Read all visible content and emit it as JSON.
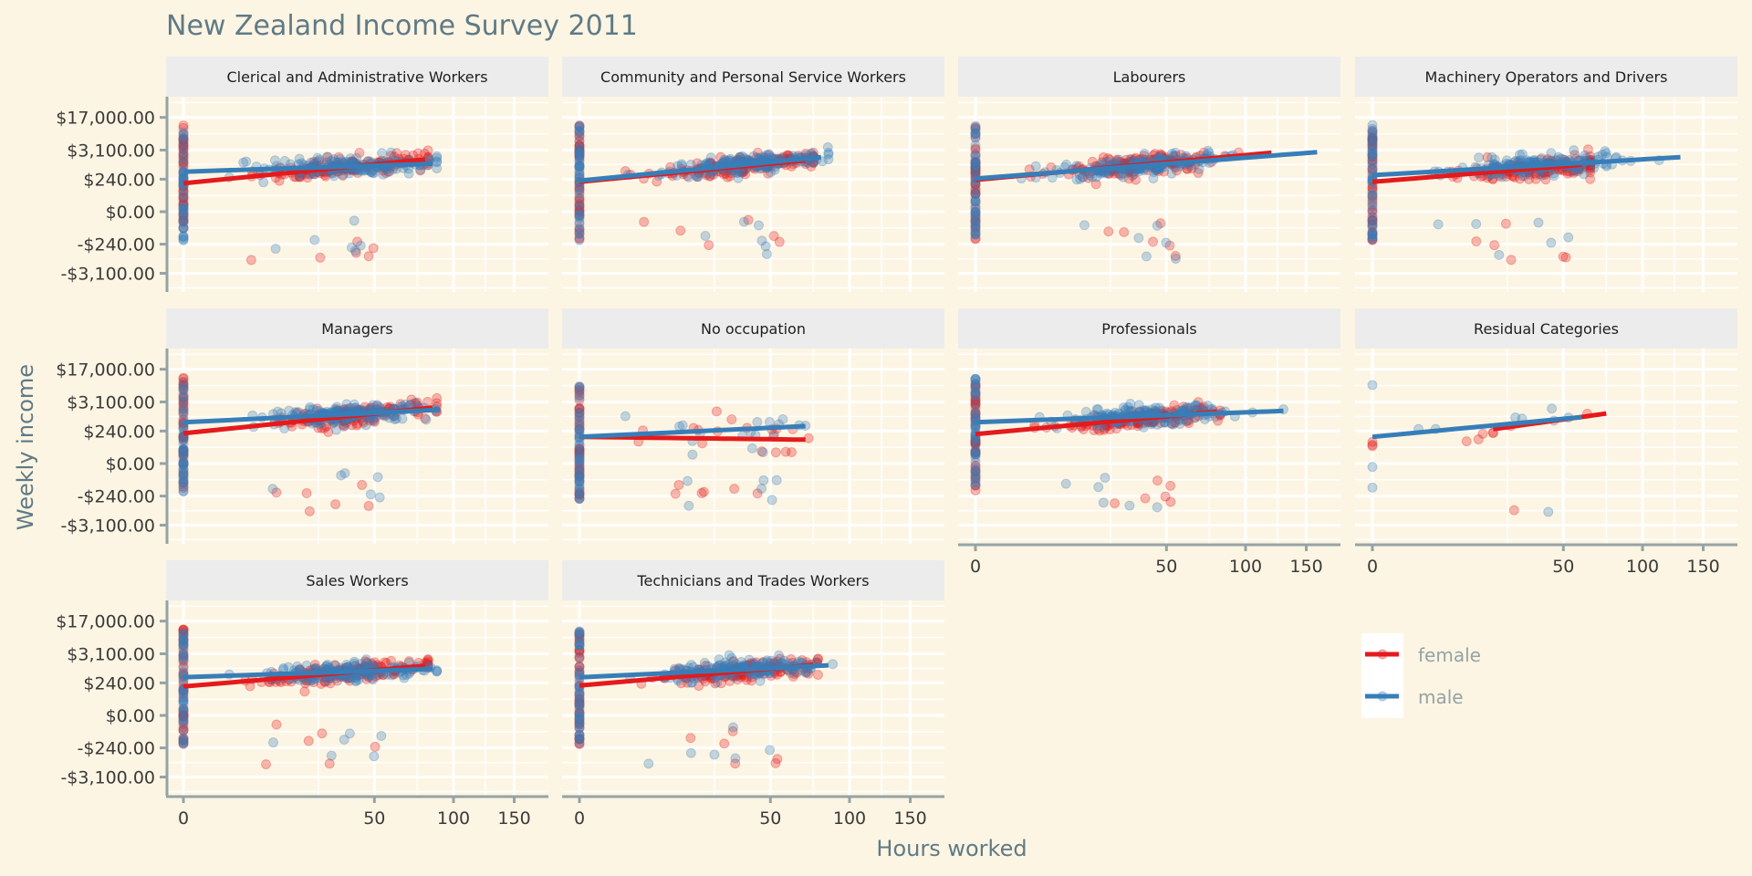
{
  "chart_data": {
    "type": "scatter",
    "title": "New Zealand Income Survey 2011",
    "xlabel": "Hours worked",
    "ylabel": "Weekly income",
    "x_scale": "sqrt",
    "y_scale": "signed fourth-root",
    "x_ticks": [
      0,
      50,
      100,
      150
    ],
    "x_tick_labels": [
      "0",
      "50",
      "100",
      "150"
    ],
    "x_minor_ticks": [
      25,
      75,
      125
    ],
    "y_ticks": [
      -3100,
      -240,
      0,
      240,
      3100,
      17000
    ],
    "y_tick_labels": [
      "-$3,100.00",
      "-$240.00",
      "$0.00",
      "$240.00",
      "$3,100.00",
      "$17,000.00"
    ],
    "xlim": [
      0,
      170
    ],
    "ylim": [
      -9000,
      45000
    ],
    "grid": true,
    "legend": {
      "placement": "bottom-right",
      "entries": [
        {
          "name": "female",
          "color": "#e41a1c"
        },
        {
          "name": "male",
          "color": "#377eb8"
        }
      ]
    },
    "colors": {
      "background": "#fdf5e3",
      "strip": "#ececec",
      "grid": "#ffffff",
      "axis": "#95a3a4",
      "female": "#e41a1c",
      "male": "#377eb8"
    },
    "facets": [
      {
        "name": "Clerical and Administrative Workers",
        "trend": {
          "female": [
            [
              0,
              140
            ],
            [
              80,
              1600
            ]
          ],
          "male": [
            [
              0,
              550
            ],
            [
              85,
              1130
            ]
          ]
        },
        "max_hours": {
          "female": 82,
          "male": 88
        }
      },
      {
        "name": "Community and Personal Service Workers",
        "trend": {
          "female": [
            [
              0,
              170
            ],
            [
              70,
              1500
            ]
          ],
          "male": [
            [
              0,
              200
            ],
            [
              80,
              1900
            ]
          ]
        },
        "max_hours": {
          "female": 75,
          "male": 85
        }
      },
      {
        "name": "Labourers",
        "trend": {
          "female": [
            [
              0,
              220
            ],
            [
              120,
              2600
            ]
          ],
          "male": [
            [
              0,
              260
            ],
            [
              160,
              2700
            ]
          ]
        },
        "max_hours": {
          "female": 120,
          "male": 165
        }
      },
      {
        "name": "Machinery Operators and Drivers",
        "trend": {
          "female": [
            [
              0,
              170
            ],
            [
              60,
              1050
            ]
          ],
          "male": [
            [
              0,
              380
            ],
            [
              130,
              1900
            ]
          ]
        },
        "max_hours": {
          "female": 65,
          "male": 130
        }
      },
      {
        "name": "Managers",
        "trend": {
          "female": [
            [
              0,
              180
            ],
            [
              85,
              2100
            ]
          ],
          "male": [
            [
              0,
              620
            ],
            [
              90,
              1800
            ]
          ]
        },
        "max_hours": {
          "female": 88,
          "male": 95
        }
      },
      {
        "name": "No occupation",
        "trend": {
          "female": [
            [
              0,
              110
            ],
            [
              70,
              70
            ]
          ],
          "male": [
            [
              0,
              110
            ],
            [
              70,
              420
            ]
          ]
        },
        "max_hours": {
          "female": 72,
          "male": 70
        }
      },
      {
        "name": "Professionals",
        "trend": {
          "female": [
            [
              0,
              160
            ],
            [
              80,
              1550
            ]
          ],
          "male": [
            [
              0,
              620
            ],
            [
              130,
              1650
            ]
          ]
        },
        "max_hours": {
          "female": 82,
          "male": 130
        }
      },
      {
        "name": "Residual Categories",
        "trend": {
          "female": [
            [
              20,
              300
            ],
            [
              75,
              1350
            ]
          ],
          "male": [
            [
              0,
              110
            ],
            [
              60,
              1000
            ]
          ]
        },
        "max_hours": {
          "female": 75,
          "male": 60
        }
      },
      {
        "name": "Sales Workers",
        "trend": {
          "female": [
            [
              0,
              150
            ],
            [
              80,
              1300
            ]
          ],
          "male": [
            [
              0,
              460
            ],
            [
              85,
              1000
            ]
          ]
        },
        "max_hours": {
          "female": 82,
          "male": 88
        }
      },
      {
        "name": "Technicians and Trades Workers",
        "trend": {
          "female": [
            [
              0,
              170
            ],
            [
              75,
              1400
            ]
          ],
          "male": [
            [
              0,
              450
            ],
            [
              85,
              1350
            ]
          ]
        },
        "max_hours": {
          "female": 78,
          "male": 88
        }
      }
    ]
  }
}
